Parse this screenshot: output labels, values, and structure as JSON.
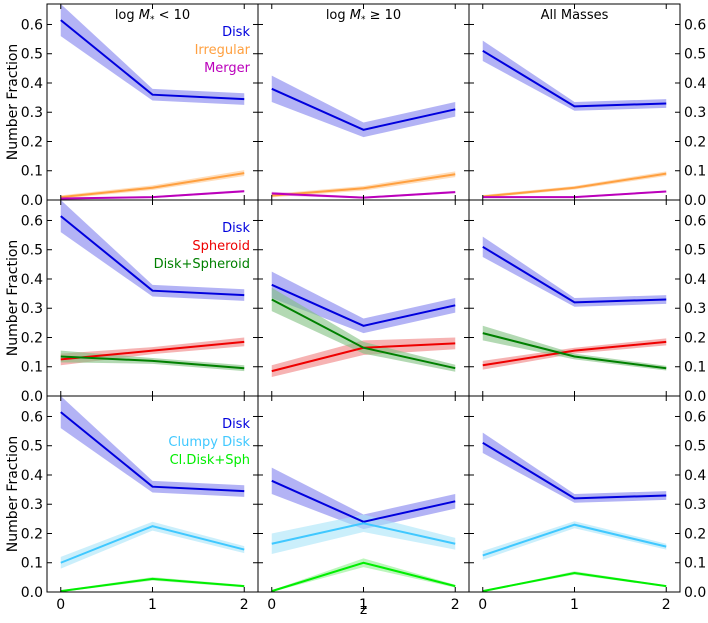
{
  "chart_data": {
    "type": "line",
    "x": [
      0,
      1,
      2
    ],
    "xlim": [
      -0.15,
      2.15
    ],
    "ylim": [
      0,
      0.67
    ],
    "yticks": [
      0.0,
      0.1,
      0.2,
      0.3,
      0.4,
      0.5,
      0.6
    ],
    "ytick_labels": [
      "0.0",
      "0.1",
      "0.2",
      "0.3",
      "0.4",
      "0.5",
      "0.6"
    ],
    "xticks": [
      0,
      1,
      2
    ],
    "xtick_labels": [
      "0",
      "1",
      "2"
    ],
    "xlabel": "z",
    "ylabel": "Number Fraction",
    "columns": [
      {
        "title_prefix": "log ",
        "title_var": "M",
        "title_sub": "*",
        "title_suffix": " < 10"
      },
      {
        "title_prefix": "log ",
        "title_var": "M",
        "title_sub": "*",
        "title_suffix": " ≥ 10"
      },
      {
        "title_prefix": "All Masses",
        "title_var": "",
        "title_sub": "",
        "title_suffix": ""
      }
    ],
    "rows": [
      {
        "series": [
          {
            "name": "Disk",
            "color": "#0000dd",
            "fill": "#8080ee",
            "values": [
              [
                0.615,
                0.36,
                0.345
              ],
              [
                0.38,
                0.24,
                0.31
              ],
              [
                0.51,
                0.32,
                0.33
              ]
            ],
            "errors": [
              [
                0.055,
                0.02,
                0.02
              ],
              [
                0.045,
                0.025,
                0.025
              ],
              [
                0.035,
                0.015,
                0.015
              ]
            ]
          },
          {
            "name": "Irregular",
            "color": "#ffa040",
            "fill": "#ffc890",
            "values": [
              [
                0.01,
                0.042,
                0.092
              ],
              [
                0.015,
                0.04,
                0.088
              ],
              [
                0.012,
                0.042,
                0.09
              ]
            ],
            "errors": [
              [
                0.006,
                0.008,
                0.01
              ],
              [
                0.006,
                0.008,
                0.01
              ],
              [
                0.005,
                0.006,
                0.008
              ]
            ]
          },
          {
            "name": "Merger",
            "color": "#bb00bb",
            "fill": "#dd80dd",
            "values": [
              [
                0.005,
                0.01,
                0.03
              ],
              [
                0.022,
                0.008,
                0.027
              ],
              [
                0.01,
                0.01,
                0.029
              ]
            ],
            "errors": [
              [
                0.003,
                0.003,
                0.004
              ],
              [
                0.006,
                0.003,
                0.004
              ],
              [
                0.003,
                0.003,
                0.003
              ]
            ]
          }
        ]
      },
      {
        "series": [
          {
            "name": "Disk",
            "color": "#0000dd",
            "fill": "#8080ee",
            "values": [
              [
                0.615,
                0.36,
                0.345
              ],
              [
                0.38,
                0.24,
                0.31
              ],
              [
                0.51,
                0.32,
                0.33
              ]
            ],
            "errors": [
              [
                0.055,
                0.02,
                0.02
              ],
              [
                0.045,
                0.025,
                0.025
              ],
              [
                0.035,
                0.015,
                0.015
              ]
            ]
          },
          {
            "name": "Spheroid",
            "color": "#ee0000",
            "fill": "#f08080",
            "values": [
              [
                0.125,
                0.155,
                0.185
              ],
              [
                0.085,
                0.165,
                0.18
              ],
              [
                0.105,
                0.155,
                0.185
              ]
            ],
            "errors": [
              [
                0.02,
                0.012,
                0.015
              ],
              [
                0.02,
                0.025,
                0.02
              ],
              [
                0.015,
                0.01,
                0.012
              ]
            ]
          },
          {
            "name": "Disk+Spheroid",
            "color": "#008000",
            "fill": "#80c080",
            "values": [
              [
                0.135,
                0.12,
                0.095
              ],
              [
                0.33,
                0.165,
                0.095
              ],
              [
                0.215,
                0.135,
                0.095
              ]
            ],
            "errors": [
              [
                0.02,
                0.01,
                0.01
              ],
              [
                0.04,
                0.02,
                0.012
              ],
              [
                0.025,
                0.01,
                0.008
              ]
            ]
          }
        ]
      },
      {
        "series": [
          {
            "name": "Disk",
            "color": "#0000dd",
            "fill": "#8080ee",
            "values": [
              [
                0.615,
                0.36,
                0.345
              ],
              [
                0.38,
                0.24,
                0.31
              ],
              [
                0.51,
                0.32,
                0.33
              ]
            ],
            "errors": [
              [
                0.055,
                0.02,
                0.02
              ],
              [
                0.045,
                0.025,
                0.025
              ],
              [
                0.035,
                0.015,
                0.015
              ]
            ]
          },
          {
            "name": "Clumpy Disk",
            "color": "#40c8ff",
            "fill": "#a8e4f8",
            "values": [
              [
                0.1,
                0.225,
                0.145
              ],
              [
                0.165,
                0.235,
                0.165
              ],
              [
                0.125,
                0.23,
                0.155
              ]
            ],
            "errors": [
              [
                0.02,
                0.015,
                0.012
              ],
              [
                0.035,
                0.03,
                0.02
              ],
              [
                0.015,
                0.012,
                0.01
              ]
            ]
          },
          {
            "name": "Cl.Disk+Sph",
            "color": "#00ee00",
            "fill": "#90f090",
            "values": [
              [
                0.003,
                0.045,
                0.02
              ],
              [
                0.003,
                0.1,
                0.02
              ],
              [
                0.003,
                0.065,
                0.02
              ]
            ],
            "errors": [
              [
                0.003,
                0.006,
                0.004
              ],
              [
                0.003,
                0.015,
                0.005
              ],
              [
                0.002,
                0.006,
                0.003
              ]
            ]
          }
        ]
      }
    ]
  }
}
